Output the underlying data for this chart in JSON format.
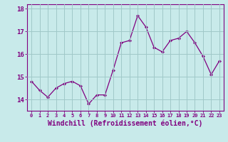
{
  "x": [
    0,
    1,
    2,
    3,
    4,
    5,
    6,
    7,
    8,
    9,
    10,
    11,
    12,
    13,
    14,
    15,
    16,
    17,
    18,
    19,
    20,
    21,
    22,
    23
  ],
  "y": [
    14.8,
    14.4,
    14.1,
    14.5,
    14.7,
    14.8,
    14.6,
    13.8,
    14.2,
    14.2,
    15.3,
    16.5,
    16.6,
    17.7,
    17.2,
    16.3,
    16.1,
    16.6,
    16.7,
    17.0,
    16.5,
    15.9,
    15.1,
    15.7
  ],
  "line_color": "#800080",
  "marker": "D",
  "marker_size": 2,
  "bg_color": "#c8eaea",
  "grid_color": "#a0c8c8",
  "xlabel": "Windchill (Refroidissement éolien,°C)",
  "ylim": [
    13.5,
    18.2
  ],
  "xlim": [
    -0.5,
    23.5
  ],
  "yticks": [
    14,
    15,
    16,
    17,
    18
  ],
  "xticks": [
    0,
    1,
    2,
    3,
    4,
    5,
    6,
    7,
    8,
    9,
    10,
    11,
    12,
    13,
    14,
    15,
    16,
    17,
    18,
    19,
    20,
    21,
    22,
    23
  ],
  "spine_color": "#800080"
}
